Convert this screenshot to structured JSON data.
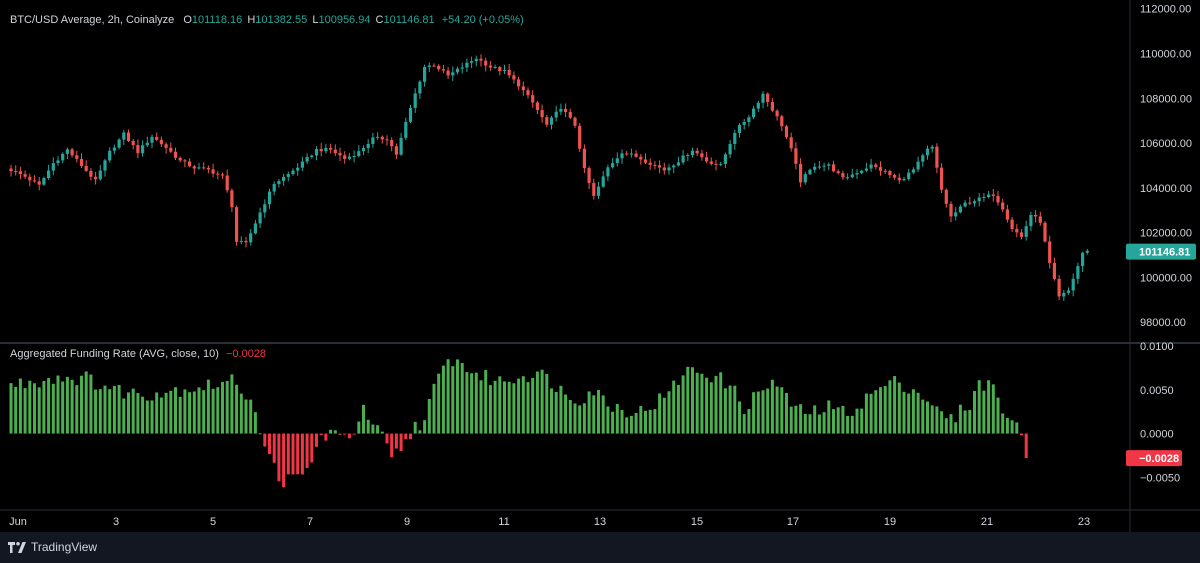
{
  "price_legend": {
    "symbol": "BTC/USD Average, 2h, Coinalyze",
    "o_label": "O",
    "o": "101118.16",
    "h_label": "H",
    "h": "101382.55",
    "l_label": "L",
    "l": "100956.94",
    "c_label": "C",
    "c": "101146.81",
    "change": "+54.20 (+0.05%)"
  },
  "funding_legend": {
    "title": "Aggregated Funding Rate (AVG, close, 10)",
    "value": "−0.0028"
  },
  "last_price_label": "101146.81",
  "last_funding_label": "−0.0028",
  "brand": "TradingView",
  "colors": {
    "background": "#000000",
    "frame": "#131722",
    "up": "#26a69a",
    "down": "#ef5350",
    "hist_pos": "#4caf50",
    "hist_neg": "#f23645",
    "text": "#d1d4dc",
    "separator": "#2a2e39"
  },
  "chart_data": [
    {
      "type": "candlestick",
      "title": "BTC/USD Average, 2h, Coinalyze",
      "x_ticks": [
        "Jun",
        "3",
        "5",
        "7",
        "9",
        "11",
        "13",
        "15",
        "17",
        "19",
        "21",
        "23"
      ],
      "y_ticks": [
        "112000.00",
        "110000.00",
        "108000.00",
        "106000.00",
        "104000.00",
        "102000.00",
        "100000.00",
        "98000.00"
      ],
      "ylim": [
        97200,
        112300
      ],
      "grid": false,
      "close_path": [
        [
          0,
          104800
        ],
        [
          3,
          104500
        ],
        [
          6,
          104100
        ],
        [
          9,
          105100
        ],
        [
          12,
          105700
        ],
        [
          15,
          105000
        ],
        [
          18,
          104300
        ],
        [
          21,
          105600
        ],
        [
          24,
          106400
        ],
        [
          27,
          105600
        ],
        [
          30,
          106300
        ],
        [
          33,
          105800
        ],
        [
          36,
          105200
        ],
        [
          39,
          104900
        ],
        [
          42,
          104800
        ],
        [
          45,
          104500
        ],
        [
          47,
          103200
        ],
        [
          48,
          101600
        ],
        [
          50,
          101500
        ],
        [
          53,
          102900
        ],
        [
          56,
          104200
        ],
        [
          59,
          104600
        ],
        [
          62,
          105100
        ],
        [
          65,
          105700
        ],
        [
          68,
          105700
        ],
        [
          71,
          105300
        ],
        [
          74,
          105600
        ],
        [
          77,
          106200
        ],
        [
          80,
          106200
        ],
        [
          82,
          105500
        ],
        [
          84,
          106900
        ],
        [
          86,
          108200
        ],
        [
          88,
          109400
        ],
        [
          90,
          109500
        ],
        [
          93,
          109000
        ],
        [
          96,
          109400
        ],
        [
          99,
          109800
        ],
        [
          102,
          109400
        ],
        [
          105,
          109200
        ],
        [
          108,
          108600
        ],
        [
          111,
          107800
        ],
        [
          114,
          106800
        ],
        [
          117,
          107600
        ],
        [
          120,
          106800
        ],
        [
          122,
          104800
        ],
        [
          124,
          103600
        ],
        [
          127,
          104900
        ],
        [
          130,
          105600
        ],
        [
          133,
          105400
        ],
        [
          136,
          105100
        ],
        [
          139,
          104800
        ],
        [
          142,
          105200
        ],
        [
          145,
          105700
        ],
        [
          148,
          105200
        ],
        [
          151,
          105000
        ],
        [
          154,
          106500
        ],
        [
          157,
          107200
        ],
        [
          160,
          108200
        ],
        [
          162,
          107500
        ],
        [
          164,
          106800
        ],
        [
          166,
          105700
        ],
        [
          168,
          104300
        ],
        [
          171,
          105000
        ],
        [
          174,
          105000
        ],
        [
          177,
          104400
        ],
        [
          180,
          104700
        ],
        [
          183,
          105000
        ],
        [
          186,
          104700
        ],
        [
          189,
          104300
        ],
        [
          192,
          104800
        ],
        [
          195,
          105700
        ],
        [
          196,
          105800
        ],
        [
          198,
          103900
        ],
        [
          200,
          102700
        ],
        [
          203,
          103300
        ],
        [
          206,
          103500
        ],
        [
          209,
          103700
        ],
        [
          211,
          103100
        ],
        [
          213,
          102200
        ],
        [
          215,
          101800
        ],
        [
          217,
          102800
        ],
        [
          219,
          102500
        ],
        [
          221,
          100600
        ],
        [
          223,
          99100
        ],
        [
          225,
          99400
        ],
        [
          227,
          100500
        ],
        [
          228,
          101100
        ],
        [
          229,
          101147
        ]
      ]
    },
    {
      "type": "bar",
      "title": "Aggregated Funding Rate (AVG, close, 10)",
      "y_ticks": [
        "0.0100",
        "0.0050",
        "0.0000",
        "−0.0050"
      ],
      "ylim": [
        -0.0085,
        0.01
      ],
      "grid": false,
      "value_path": [
        [
          0,
          0.0055
        ],
        [
          10,
          0.0065
        ],
        [
          16,
          0.0063
        ],
        [
          22,
          0.005
        ],
        [
          28,
          0.0045
        ],
        [
          35,
          0.005
        ],
        [
          42,
          0.0055
        ],
        [
          48,
          0.006
        ],
        [
          52,
          0.003
        ],
        [
          54,
          -0.002
        ],
        [
          58,
          -0.0055
        ],
        [
          62,
          -0.005
        ],
        [
          64,
          -0.003
        ],
        [
          66,
          -0.0005
        ],
        [
          68,
          0.0002
        ],
        [
          70,
          -0.0008
        ],
        [
          73,
          0.0005
        ],
        [
          75,
          0.0025
        ],
        [
          77,
          0.001
        ],
        [
          79,
          -0.0005
        ],
        [
          81,
          -0.003
        ],
        [
          84,
          -0.001
        ],
        [
          86,
          0.001
        ],
        [
          88,
          0.0015
        ],
        [
          90,
          0.005
        ],
        [
          92,
          0.0075
        ],
        [
          94,
          0.0085
        ],
        [
          97,
          0.0075
        ],
        [
          100,
          0.0065
        ],
        [
          104,
          0.006
        ],
        [
          108,
          0.0065
        ],
        [
          112,
          0.007
        ],
        [
          115,
          0.006
        ],
        [
          118,
          0.0045
        ],
        [
          121,
          0.004
        ],
        [
          124,
          0.005
        ],
        [
          127,
          0.0035
        ],
        [
          130,
          0.0028
        ],
        [
          134,
          0.0025
        ],
        [
          137,
          0.0035
        ],
        [
          140,
          0.0045
        ],
        [
          143,
          0.007
        ],
        [
          146,
          0.0072
        ],
        [
          150,
          0.0065
        ],
        [
          153,
          0.0055
        ],
        [
          156,
          0.003
        ],
        [
          159,
          0.0045
        ],
        [
          162,
          0.006
        ],
        [
          165,
          0.004
        ],
        [
          168,
          0.0025
        ],
        [
          171,
          0.0025
        ],
        [
          174,
          0.003
        ],
        [
          177,
          0.0025
        ],
        [
          180,
          0.003
        ],
        [
          183,
          0.0045
        ],
        [
          186,
          0.0055
        ],
        [
          189,
          0.006
        ],
        [
          192,
          0.005
        ],
        [
          195,
          0.004
        ],
        [
          197,
          0.0025
        ],
        [
          200,
          0.0015
        ],
        [
          202,
          0.0025
        ],
        [
          204,
          0.0035
        ],
        [
          206,
          0.0055
        ],
        [
          208,
          0.006
        ],
        [
          210,
          0.004
        ],
        [
          212,
          0.002
        ],
        [
          213,
          0.0015
        ],
        [
          214,
          0.0005
        ],
        [
          215,
          -0.0005
        ],
        [
          216,
          -0.0028
        ]
      ]
    }
  ]
}
